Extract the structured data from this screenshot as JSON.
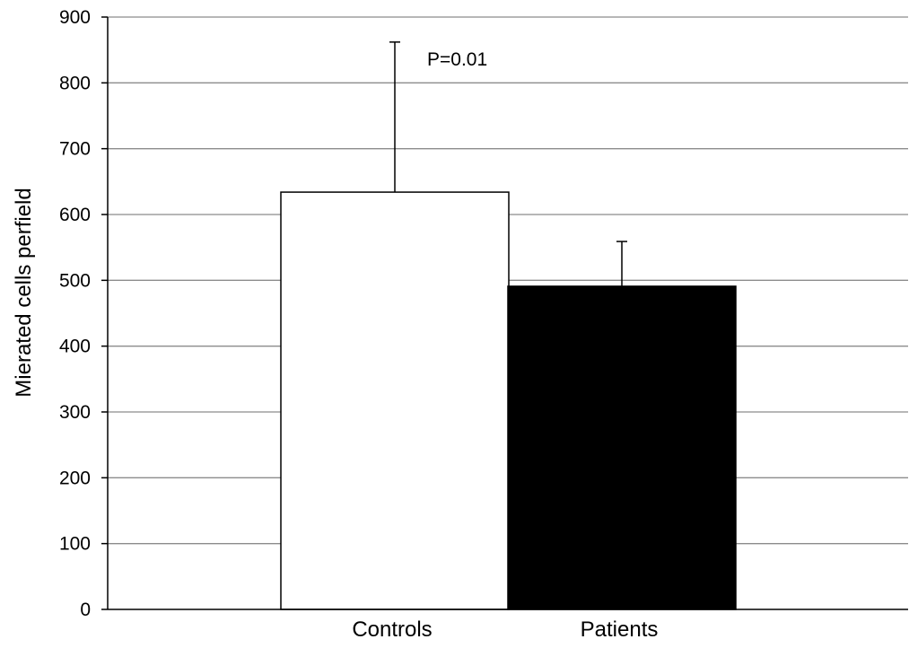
{
  "chart_data": {
    "type": "bar",
    "title": "",
    "xlabel": "",
    "ylabel": "Mierated cells perfield",
    "categories": [
      "Controls",
      "Patients"
    ],
    "values": [
      634,
      491
    ],
    "error_upper": [
      862,
      559
    ],
    "ylim": [
      0,
      900
    ],
    "yticks": [
      0,
      100,
      200,
      300,
      400,
      500,
      600,
      700,
      800,
      900
    ],
    "grid": true,
    "bar_colors": [
      "#ffffff",
      "#000000"
    ],
    "annotation": "P=0.01"
  }
}
